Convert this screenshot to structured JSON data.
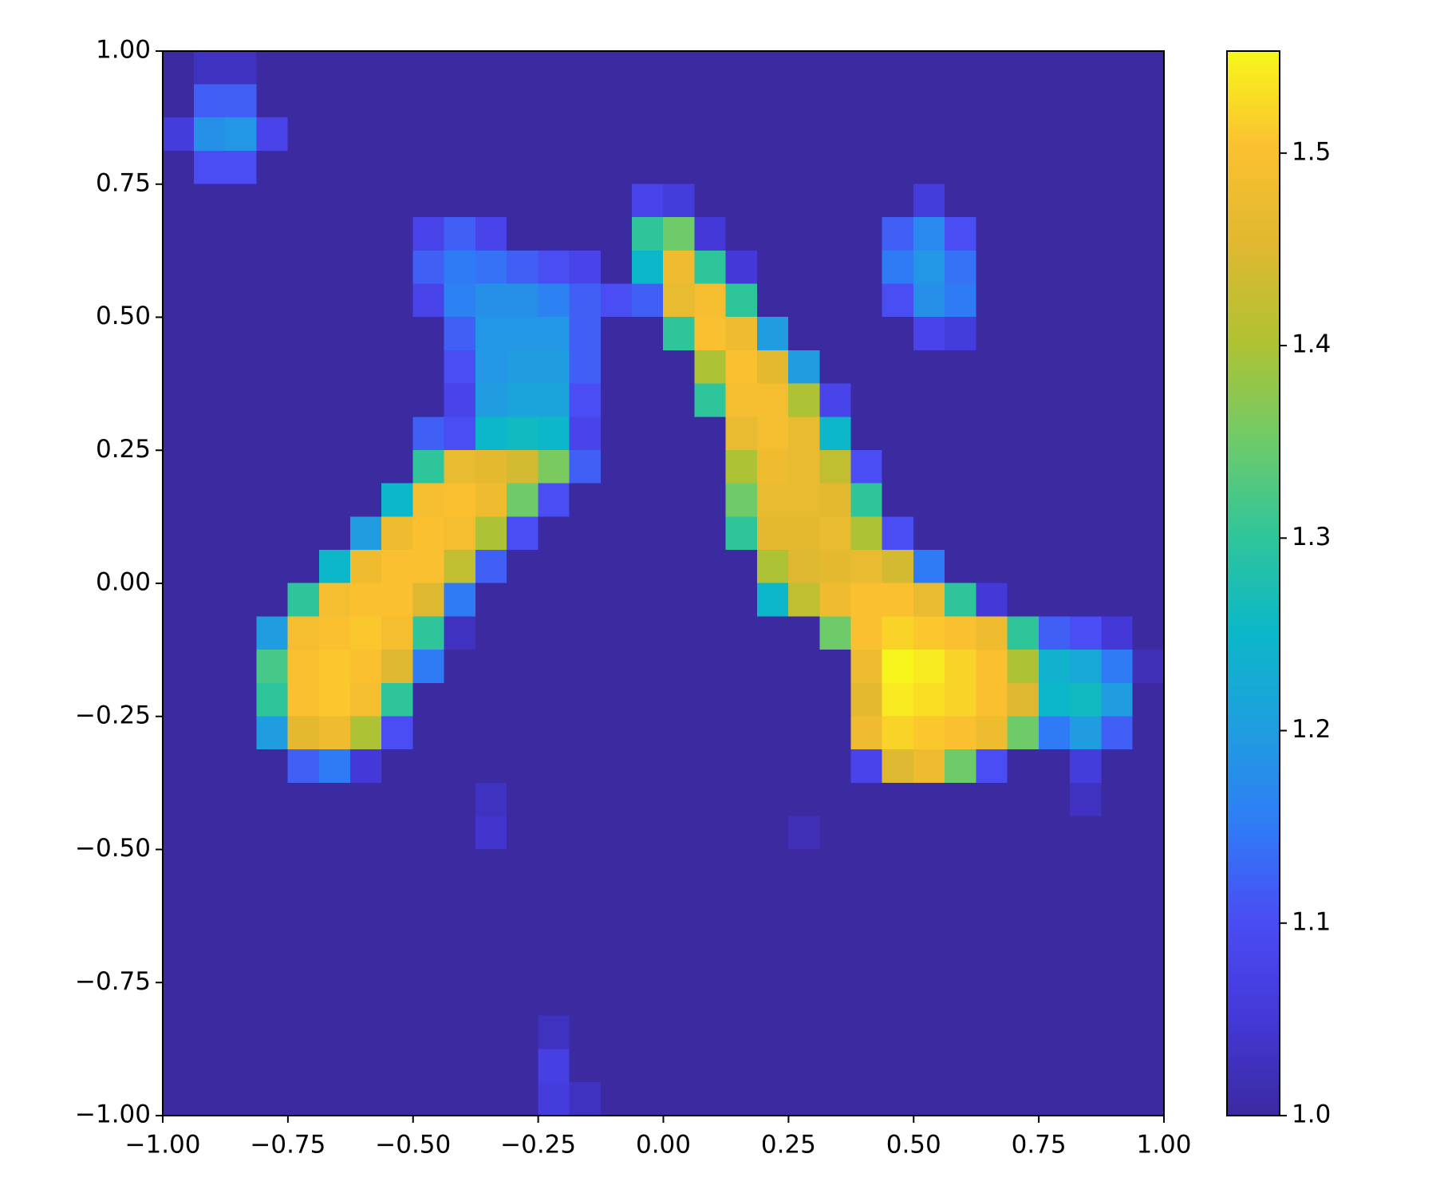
{
  "chart_data": {
    "type": "heatmap",
    "xlim": [
      -1,
      1
    ],
    "ylim": [
      -1,
      1
    ],
    "xticks": [
      {
        "value": -1,
        "label": "−1.00"
      },
      {
        "value": -0.75,
        "label": "−0.75"
      },
      {
        "value": -0.5,
        "label": "−0.50"
      },
      {
        "value": -0.25,
        "label": "−0.25"
      },
      {
        "value": 0,
        "label": "0.00"
      },
      {
        "value": 0.25,
        "label": "0.25"
      },
      {
        "value": 0.5,
        "label": "0.50"
      },
      {
        "value": 0.75,
        "label": "0.75"
      },
      {
        "value": 1,
        "label": "1.00"
      }
    ],
    "yticks": [
      {
        "value": -1,
        "label": "−1.00"
      },
      {
        "value": -0.75,
        "label": "−0.75"
      },
      {
        "value": -0.5,
        "label": "−0.50"
      },
      {
        "value": -0.25,
        "label": "−0.25"
      },
      {
        "value": 0,
        "label": "0.00"
      },
      {
        "value": 0.25,
        "label": "0.25"
      },
      {
        "value": 0.5,
        "label": "0.50"
      },
      {
        "value": 0.75,
        "label": "0.75"
      },
      {
        "value": 1,
        "label": "1.00"
      }
    ],
    "colormap": [
      "#3b2aa0",
      "#4438d8",
      "#4a4cf4",
      "#2f7cf6",
      "#1f9ee0",
      "#0bb8c8",
      "#30c59a",
      "#70cb68",
      "#b0c232",
      "#e0b830",
      "#fbc030",
      "#f7f71a"
    ],
    "colorbar": {
      "clim": [
        1,
        1.553
      ],
      "ticks": [
        {
          "value": 1,
          "label": "1.0"
        },
        1.1,
        1.2,
        1.3,
        1.4,
        1.5
      ]
    },
    "z": [
      [
        1,
        1.03,
        1.03,
        1,
        1,
        1,
        1,
        1,
        1,
        1,
        1,
        1,
        1,
        1,
        1,
        1,
        1,
        1,
        1,
        1,
        1,
        1,
        1,
        1,
        1,
        1,
        1,
        1,
        1,
        1,
        1,
        1
      ],
      [
        1,
        1.12,
        1.12,
        1,
        1,
        1,
        1,
        1,
        1,
        1,
        1,
        1,
        1,
        1,
        1,
        1,
        1,
        1,
        1,
        1,
        1,
        1,
        1,
        1,
        1,
        1,
        1,
        1,
        1,
        1,
        1,
        1
      ],
      [
        1.06,
        1.18,
        1.19,
        1.08,
        1,
        1,
        1,
        1,
        1,
        1,
        1,
        1,
        1,
        1,
        1,
        1,
        1,
        1,
        1,
        1,
        1,
        1,
        1,
        1,
        1,
        1,
        1,
        1,
        1,
        1,
        1,
        1
      ],
      [
        1,
        1.1,
        1.1,
        1,
        1,
        1,
        1,
        1,
        1,
        1,
        1,
        1,
        1,
        1,
        1,
        1,
        1,
        1,
        1,
        1,
        1,
        1,
        1,
        1,
        1,
        1,
        1,
        1,
        1,
        1,
        1,
        1
      ],
      [
        1,
        1,
        1,
        1,
        1,
        1,
        1,
        1,
        1,
        1,
        1,
        1,
        1,
        1,
        1,
        1.08,
        1.06,
        1,
        1,
        1,
        1,
        1,
        1,
        1,
        1.06,
        1,
        1,
        1,
        1,
        1,
        1,
        1
      ],
      [
        1,
        1,
        1,
        1,
        1,
        1,
        1,
        1,
        1.08,
        1.12,
        1.08,
        1,
        1,
        1,
        1,
        1.3,
        1.35,
        1.05,
        1,
        1,
        1,
        1,
        1,
        1.12,
        1.17,
        1.1,
        1,
        1,
        1,
        1,
        1,
        1
      ],
      [
        1,
        1,
        1,
        1,
        1,
        1,
        1,
        1,
        1.12,
        1.15,
        1.14,
        1.12,
        1.1,
        1.08,
        1,
        1.25,
        1.48,
        1.3,
        1.05,
        1,
        1,
        1,
        1,
        1.15,
        1.19,
        1.14,
        1,
        1,
        1,
        1,
        1,
        1
      ],
      [
        1,
        1,
        1,
        1,
        1,
        1,
        1,
        1,
        1.08,
        1.16,
        1.18,
        1.18,
        1.16,
        1.12,
        1.1,
        1.12,
        1.47,
        1.49,
        1.3,
        1,
        1,
        1,
        1,
        1.1,
        1.18,
        1.15,
        1,
        1,
        1,
        1,
        1,
        1
      ],
      [
        1,
        1,
        1,
        1,
        1,
        1,
        1,
        1,
        1,
        1.12,
        1.19,
        1.19,
        1.19,
        1.12,
        1,
        1,
        1.3,
        1.5,
        1.48,
        1.2,
        1,
        1,
        1,
        1,
        1.08,
        1.06,
        1,
        1,
        1,
        1,
        1,
        1
      ],
      [
        1,
        1,
        1,
        1,
        1,
        1,
        1,
        1,
        1,
        1.1,
        1.19,
        1.2,
        1.2,
        1.12,
        1,
        1,
        1,
        1.4,
        1.5,
        1.46,
        1.2,
        1,
        1,
        1,
        1,
        1,
        1,
        1,
        1,
        1,
        1,
        1
      ],
      [
        1,
        1,
        1,
        1,
        1,
        1,
        1,
        1,
        1,
        1.08,
        1.2,
        1.21,
        1.21,
        1.1,
        1,
        1,
        1,
        1.3,
        1.49,
        1.49,
        1.4,
        1.08,
        1,
        1,
        1,
        1,
        1,
        1,
        1,
        1,
        1,
        1
      ],
      [
        1,
        1,
        1,
        1,
        1,
        1,
        1,
        1,
        1.12,
        1.1,
        1.25,
        1.26,
        1.25,
        1.08,
        1,
        1,
        1,
        1,
        1.47,
        1.49,
        1.47,
        1.25,
        1,
        1,
        1,
        1,
        1,
        1,
        1,
        1,
        1,
        1
      ],
      [
        1,
        1,
        1,
        1,
        1,
        1,
        1,
        1,
        1.3,
        1.47,
        1.46,
        1.44,
        1.36,
        1.12,
        1,
        1,
        1,
        1,
        1.4,
        1.48,
        1.47,
        1.42,
        1.1,
        1,
        1,
        1,
        1,
        1,
        1,
        1,
        1,
        1
      ],
      [
        1,
        1,
        1,
        1,
        1,
        1,
        1,
        1.25,
        1.49,
        1.5,
        1.48,
        1.35,
        1.1,
        1,
        1,
        1,
        1,
        1,
        1.35,
        1.47,
        1.47,
        1.46,
        1.3,
        1,
        1,
        1,
        1,
        1,
        1,
        1,
        1,
        1
      ],
      [
        1,
        1,
        1,
        1,
        1,
        1,
        1.2,
        1.48,
        1.5,
        1.49,
        1.4,
        1.1,
        1,
        1,
        1,
        1,
        1,
        1,
        1.3,
        1.46,
        1.46,
        1.47,
        1.4,
        1.1,
        1,
        1,
        1,
        1,
        1,
        1,
        1,
        1
      ],
      [
        1,
        1,
        1,
        1,
        1,
        1.25,
        1.48,
        1.5,
        1.5,
        1.42,
        1.12,
        1,
        1,
        1,
        1,
        1,
        1,
        1,
        1,
        1.4,
        1.45,
        1.46,
        1.47,
        1.44,
        1.15,
        1,
        1,
        1,
        1,
        1,
        1,
        1
      ],
      [
        1,
        1,
        1,
        1,
        1.3,
        1.49,
        1.5,
        1.5,
        1.45,
        1.15,
        1,
        1,
        1,
        1,
        1,
        1,
        1,
        1,
        1,
        1.25,
        1.42,
        1.48,
        1.5,
        1.5,
        1.47,
        1.3,
        1.05,
        1,
        1,
        1,
        1,
        1
      ],
      [
        1,
        1,
        1,
        1.2,
        1.49,
        1.5,
        1.51,
        1.49,
        1.3,
        1.03,
        1,
        1,
        1,
        1,
        1,
        1,
        1,
        1,
        1,
        1,
        1,
        1.35,
        1.5,
        1.52,
        1.51,
        1.5,
        1.48,
        1.3,
        1.12,
        1.1,
        1.05,
        1
      ],
      [
        1,
        1,
        1,
        1.32,
        1.5,
        1.51,
        1.5,
        1.45,
        1.15,
        1,
        1,
        1,
        1,
        1,
        1,
        1,
        1,
        1,
        1,
        1,
        1,
        1,
        1.48,
        1.55,
        1.54,
        1.52,
        1.5,
        1.4,
        1.24,
        1.22,
        1.15,
        1.02
      ],
      [
        1,
        1,
        1,
        1.3,
        1.5,
        1.51,
        1.49,
        1.3,
        1,
        1,
        1,
        1,
        1,
        1,
        1,
        1,
        1,
        1,
        1,
        1,
        1,
        1,
        1.46,
        1.54,
        1.53,
        1.52,
        1.5,
        1.45,
        1.25,
        1.26,
        1.2,
        1
      ],
      [
        1,
        1,
        1,
        1.2,
        1.46,
        1.48,
        1.4,
        1.1,
        1,
        1,
        1,
        1,
        1,
        1,
        1,
        1,
        1,
        1,
        1,
        1,
        1,
        1,
        1.48,
        1.52,
        1.51,
        1.5,
        1.48,
        1.35,
        1.15,
        1.2,
        1.12,
        1
      ],
      [
        1,
        1,
        1,
        1,
        1.12,
        1.15,
        1.05,
        1,
        1,
        1,
        1,
        1,
        1,
        1,
        1,
        1,
        1,
        1,
        1,
        1,
        1,
        1,
        1.08,
        1.45,
        1.48,
        1.35,
        1.1,
        1,
        1,
        1.06,
        1,
        1
      ],
      [
        1,
        1,
        1,
        1,
        1,
        1,
        1,
        1,
        1,
        1,
        1.03,
        1,
        1,
        1,
        1,
        1,
        1,
        1,
        1,
        1,
        1,
        1,
        1,
        1,
        1,
        1,
        1,
        1,
        1,
        1.03,
        1,
        1
      ],
      [
        1,
        1,
        1,
        1,
        1,
        1,
        1,
        1,
        1,
        1,
        1.04,
        1,
        1,
        1,
        1,
        1,
        1,
        1,
        1,
        1,
        1.02,
        1,
        1,
        1,
        1,
        1,
        1,
        1,
        1,
        1,
        1,
        1
      ],
      [
        1,
        1,
        1,
        1,
        1,
        1,
        1,
        1,
        1,
        1,
        1,
        1,
        1,
        1,
        1,
        1,
        1,
        1,
        1,
        1,
        1,
        1,
        1,
        1,
        1,
        1,
        1,
        1,
        1,
        1,
        1,
        1
      ],
      [
        1,
        1,
        1,
        1,
        1,
        1,
        1,
        1,
        1,
        1,
        1,
        1,
        1,
        1,
        1,
        1,
        1,
        1,
        1,
        1,
        1,
        1,
        1,
        1,
        1,
        1,
        1,
        1,
        1,
        1,
        1,
        1
      ],
      [
        1,
        1,
        1,
        1,
        1,
        1,
        1,
        1,
        1,
        1,
        1,
        1,
        1,
        1,
        1,
        1,
        1,
        1,
        1,
        1,
        1,
        1,
        1,
        1,
        1,
        1,
        1,
        1,
        1,
        1,
        1,
        1
      ],
      [
        1,
        1,
        1,
        1,
        1,
        1,
        1,
        1,
        1,
        1,
        1,
        1,
        1,
        1,
        1,
        1,
        1,
        1,
        1,
        1,
        1,
        1,
        1,
        1,
        1,
        1,
        1,
        1,
        1,
        1,
        1,
        1
      ],
      [
        1,
        1,
        1,
        1,
        1,
        1,
        1,
        1,
        1,
        1,
        1,
        1,
        1,
        1,
        1,
        1,
        1,
        1,
        1,
        1,
        1,
        1,
        1,
        1,
        1,
        1,
        1,
        1,
        1,
        1,
        1,
        1
      ],
      [
        1,
        1,
        1,
        1,
        1,
        1,
        1,
        1,
        1,
        1,
        1,
        1,
        1.03,
        1,
        1,
        1,
        1,
        1,
        1,
        1,
        1,
        1,
        1,
        1,
        1,
        1,
        1,
        1,
        1,
        1,
        1,
        1
      ],
      [
        1,
        1,
        1,
        1,
        1,
        1,
        1,
        1,
        1,
        1,
        1,
        1,
        1.07,
        1,
        1,
        1,
        1,
        1,
        1,
        1,
        1,
        1,
        1,
        1,
        1,
        1,
        1,
        1,
        1,
        1,
        1,
        1
      ],
      [
        1,
        1,
        1,
        1,
        1,
        1,
        1,
        1,
        1,
        1,
        1,
        1,
        1.06,
        1.03,
        1,
        1,
        1,
        1,
        1,
        1,
        1,
        1,
        1,
        1,
        1,
        1,
        1,
        1,
        1,
        1,
        1,
        1
      ]
    ]
  }
}
